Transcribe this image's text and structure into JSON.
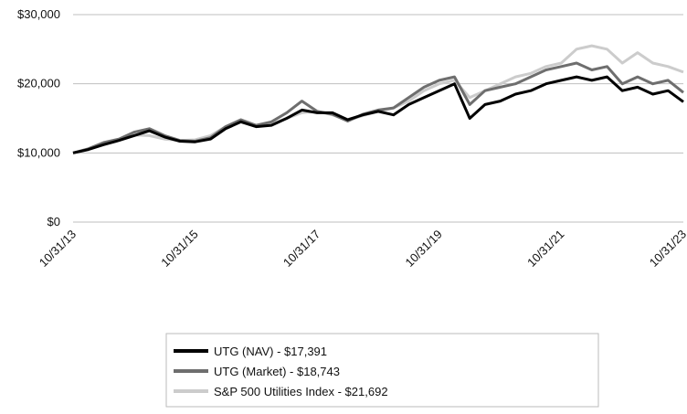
{
  "chart_data": {
    "type": "line",
    "categories": [
      "10/31/13",
      null,
      null,
      null,
      null,
      null,
      null,
      null,
      "10/31/15",
      null,
      null,
      null,
      null,
      null,
      null,
      null,
      "10/31/17",
      null,
      null,
      null,
      null,
      null,
      null,
      null,
      "10/31/19",
      null,
      null,
      null,
      null,
      null,
      null,
      null,
      "10/31/21",
      null,
      null,
      null,
      null,
      null,
      null,
      null,
      "10/31/23"
    ],
    "series": [
      {
        "name": "UTG (NAV) - $17,391",
        "color": "#000000",
        "values": [
          10000,
          10500,
          11200,
          11800,
          12500,
          13200,
          12300,
          11700,
          11600,
          12000,
          13500,
          14500,
          13800,
          14000,
          15000,
          16200,
          15800,
          15800,
          14800,
          15500,
          16000,
          15500,
          17000,
          18000,
          19000,
          20000,
          15000,
          17000,
          17500,
          18500,
          19000,
          20000,
          20500,
          21000,
          20500,
          21000,
          19000,
          19500,
          18500,
          19000,
          17391
        ]
      },
      {
        "name": "UTG (Market) - $18,743",
        "color": "#6e6e6e",
        "values": [
          10000,
          10600,
          11500,
          12000,
          13000,
          13500,
          12500,
          11800,
          11700,
          12200,
          13800,
          14800,
          14000,
          14500,
          15800,
          17500,
          16000,
          15600,
          14600,
          15600,
          16200,
          16500,
          18000,
          19500,
          20500,
          21000,
          17000,
          19000,
          19500,
          20000,
          21000,
          22000,
          22500,
          23000,
          22000,
          22500,
          20000,
          21000,
          20000,
          20500,
          18743
        ]
      },
      {
        "name": "S&P 500 Utilities Index - $21,692",
        "color": "#cccccc",
        "values": [
          10000,
          10500,
          11300,
          11800,
          12600,
          12500,
          12000,
          11800,
          11900,
          12500,
          13800,
          14500,
          13800,
          14200,
          15000,
          15800,
          16000,
          15500,
          14700,
          15400,
          16000,
          16500,
          17500,
          19000,
          20000,
          20500,
          18000,
          19000,
          20000,
          21000,
          21500,
          22500,
          23000,
          25000,
          25500,
          25000,
          23000,
          24500,
          23000,
          22500,
          21692
        ]
      }
    ],
    "ylim": [
      0,
      30000
    ],
    "yticks": [
      {
        "value": 0,
        "label": "$0"
      },
      {
        "value": 10000,
        "label": "$10,000"
      },
      {
        "value": 20000,
        "label": "$20,000"
      },
      {
        "value": 30000,
        "label": "$30,000"
      }
    ],
    "grid": true
  }
}
